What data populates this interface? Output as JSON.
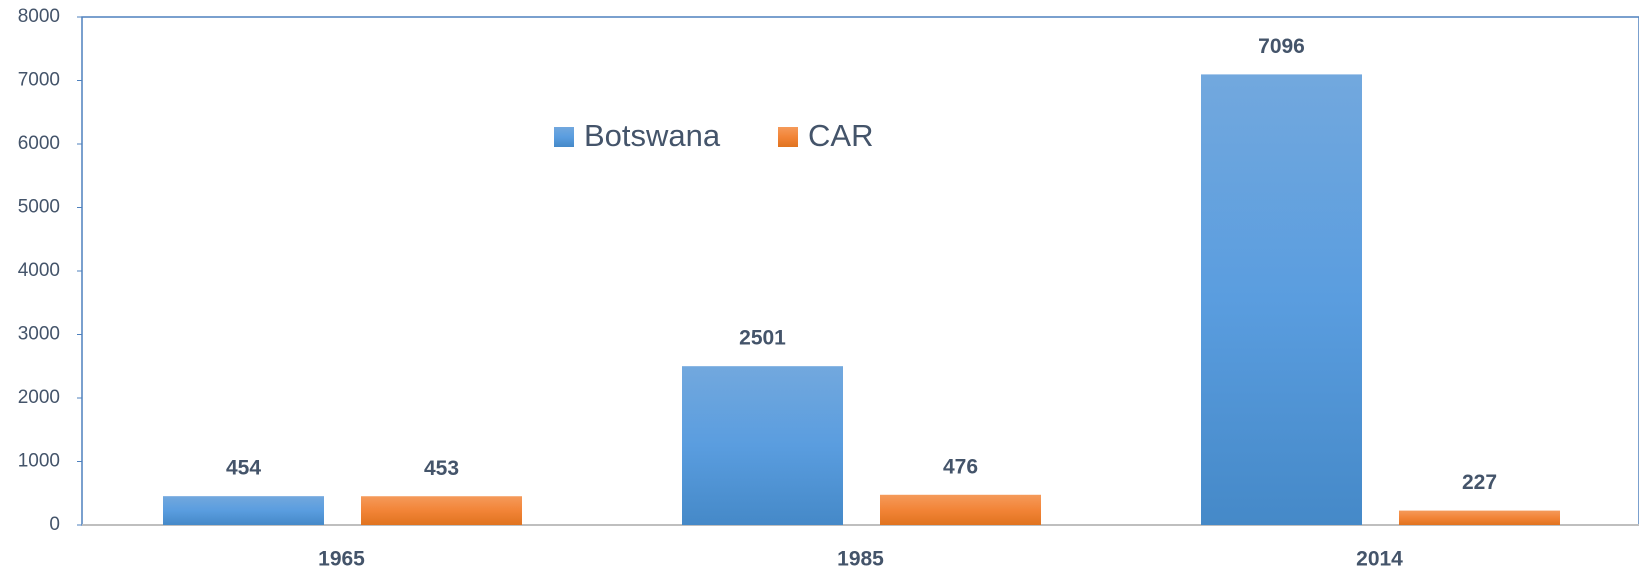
{
  "chart_data": {
    "type": "bar",
    "categories": [
      "1965",
      "1985",
      "2014"
    ],
    "series": [
      {
        "name": "Botswana",
        "color": "#5b9bd5",
        "values": [
          454,
          2501,
          7096
        ]
      },
      {
        "name": "CAR",
        "color": "#ed7d31",
        "values": [
          453,
          476,
          227
        ]
      }
    ],
    "ylim": [
      0,
      8000
    ],
    "yticks": [
      0,
      1000,
      2000,
      3000,
      4000,
      5000,
      6000,
      7000,
      8000
    ],
    "legend": "top"
  }
}
